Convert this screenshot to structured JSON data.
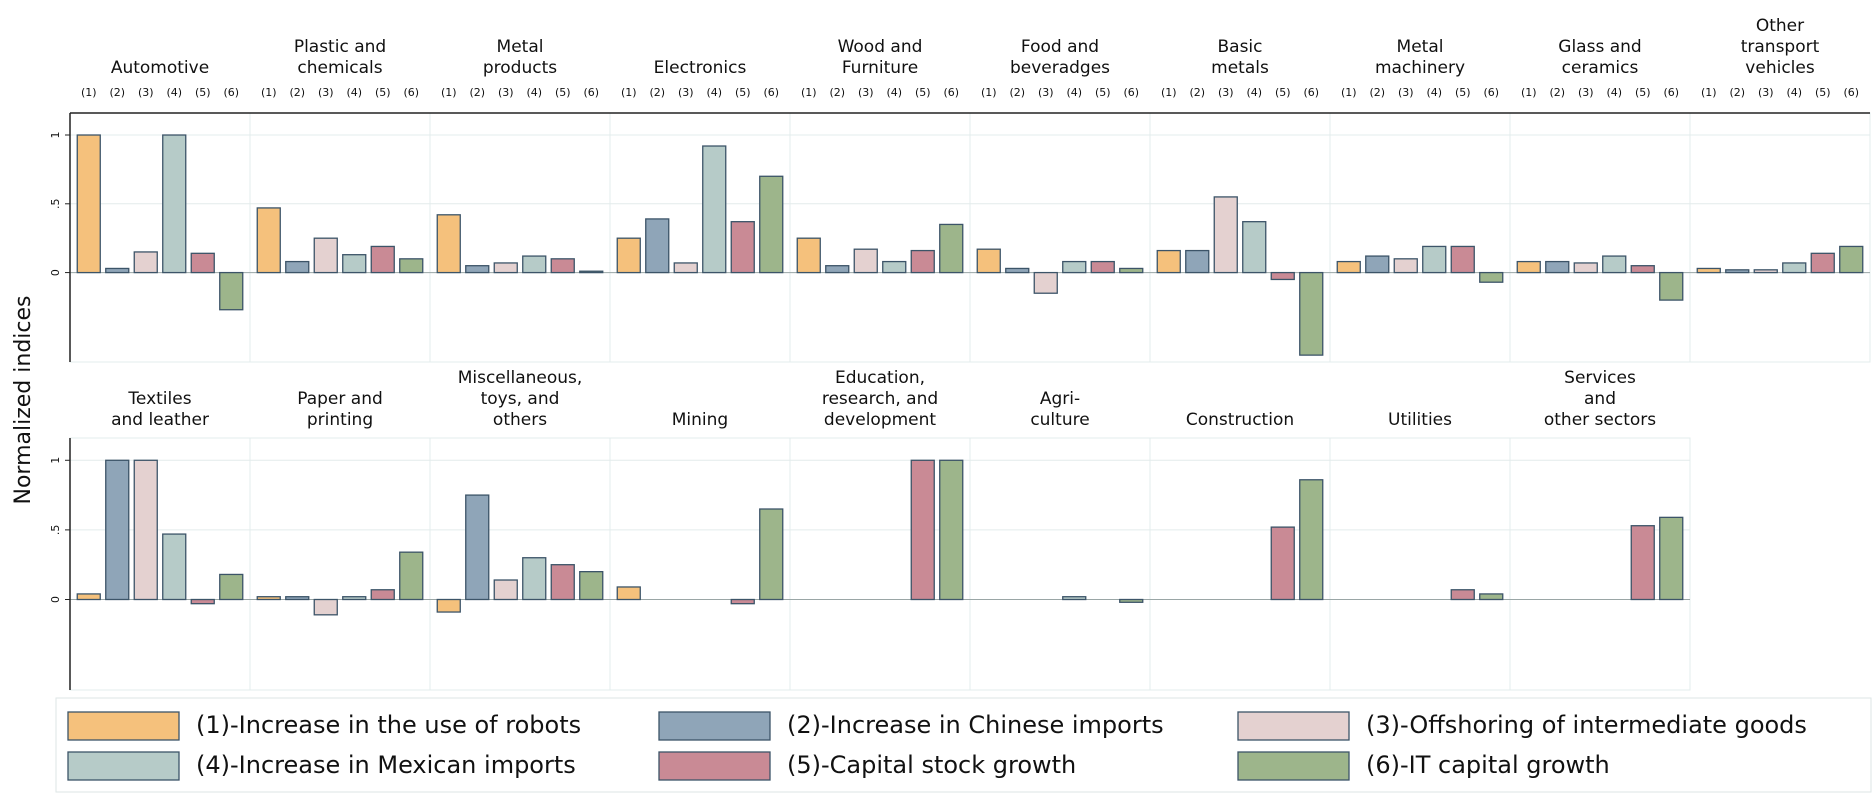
{
  "chart_data": {
    "type": "bar",
    "ylabel": "Normalized indices",
    "ylim": [
      -0.65,
      1.16
    ],
    "yticks": [
      0,
      {
        "value": 0.5,
        "label": ".5"
      },
      1
    ],
    "grid": true,
    "bar_labels": [
      "(1)",
      "(2)",
      "(3)",
      "(4)",
      "(5)",
      "(6)"
    ],
    "series": [
      {
        "name": "(1)-Increase in the use of robots",
        "color": "#f5c17c"
      },
      {
        "name": "(2)-Increase in Chinese imports",
        "color": "#8fa5b8"
      },
      {
        "name": "(3)-Offshoring of intermediate goods",
        "color": "#e4d1d0"
      },
      {
        "name": "(4)-Increase in Mexican imports",
        "color": "#b6cbc8"
      },
      {
        "name": "(5)-Capital stock growth",
        "color": "#c98a95"
      },
      {
        "name": "(6)-IT capital growth",
        "color": "#9db58b"
      }
    ],
    "facets": [
      {
        "title": [
          "Automotive"
        ],
        "values": [
          1,
          0.03,
          0.15,
          1,
          0.14,
          -0.27
        ]
      },
      {
        "title": [
          "Plastic and",
          "chemicals"
        ],
        "values": [
          0.47,
          0.08,
          0.25,
          0.13,
          0.19,
          0.1
        ]
      },
      {
        "title": [
          "Metal",
          "products"
        ],
        "values": [
          0.42,
          0.05,
          0.07,
          0.12,
          0.1,
          0.01
        ]
      },
      {
        "title": [
          "Electronics"
        ],
        "values": [
          0.25,
          0.39,
          0.07,
          0.92,
          0.37,
          0.7
        ]
      },
      {
        "title": [
          "Wood and",
          "Furniture"
        ],
        "values": [
          0.25,
          0.05,
          0.17,
          0.08,
          0.16,
          0.35
        ]
      },
      {
        "title": [
          "Food and",
          "beveradges"
        ],
        "values": [
          0.17,
          0.03,
          -0.15,
          0.08,
          0.08,
          0.03
        ]
      },
      {
        "title": [
          "Basic",
          "metals"
        ],
        "values": [
          0.16,
          0.16,
          0.55,
          0.37,
          -0.05,
          -0.6
        ]
      },
      {
        "title": [
          "Metal",
          "machinery"
        ],
        "values": [
          0.08,
          0.12,
          0.1,
          0.19,
          0.19,
          -0.07
        ]
      },
      {
        "title": [
          "Glass and",
          "ceramics"
        ],
        "values": [
          0.08,
          0.08,
          0.07,
          0.12,
          0.05,
          -0.2
        ]
      },
      {
        "title": [
          "Other",
          "transport",
          "vehicles"
        ],
        "values": [
          0.03,
          0.02,
          0.02,
          0.07,
          0.14,
          0.19
        ]
      },
      {
        "title": [
          "Textiles",
          "and leather"
        ],
        "values": [
          0.04,
          1,
          1,
          0.47,
          -0.03,
          0.18
        ]
      },
      {
        "title": [
          "Paper and",
          "printing"
        ],
        "values": [
          0.02,
          0.02,
          -0.11,
          0.02,
          0.07,
          0.34
        ]
      },
      {
        "title": [
          "Miscellaneous,",
          "toys, and",
          "others"
        ],
        "values": [
          -0.09,
          0.75,
          0.14,
          0.3,
          0.25,
          0.2
        ]
      },
      {
        "title": [
          "Mining"
        ],
        "values": [
          0.09,
          0,
          0,
          0,
          -0.03,
          0.65
        ]
      },
      {
        "title": [
          "Education,",
          "research, and",
          "development"
        ],
        "values": [
          0,
          0,
          0,
          0,
          1,
          1
        ]
      },
      {
        "title": [
          "Agri-",
          "culture"
        ],
        "values": [
          0,
          0,
          0,
          0.02,
          0,
          -0.02
        ]
      },
      {
        "title": [
          "Construction"
        ],
        "values": [
          0,
          0,
          0,
          0,
          0.52,
          0.86
        ]
      },
      {
        "title": [
          "Utilities"
        ],
        "values": [
          0,
          0,
          0,
          0,
          0.07,
          0.04
        ]
      },
      {
        "title": [
          "Services",
          "and",
          "other sectors"
        ],
        "values": [
          0,
          0,
          0,
          0,
          0.53,
          0.59
        ]
      }
    ]
  }
}
